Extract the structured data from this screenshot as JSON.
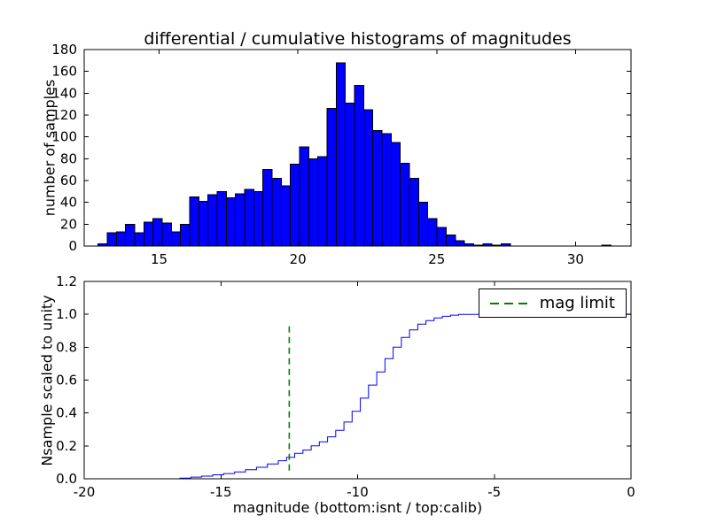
{
  "figure": {
    "background": "#ffffff",
    "frame_color": "#000000"
  },
  "chart_data": [
    {
      "type": "bar",
      "title": "differential / cumulative histograms of magnitudes",
      "ylabel": "number of samples",
      "xlim": [
        12.3,
        32.0
      ],
      "ylim": [
        0,
        180
      ],
      "xticks": [
        15,
        20,
        25,
        30
      ],
      "xtick_labels": [
        "15",
        "20",
        "25",
        "30"
      ],
      "yticks": [
        0,
        20,
        40,
        60,
        80,
        100,
        120,
        140,
        160,
        180
      ],
      "ytick_labels": [
        "0",
        "20",
        "40",
        "60",
        "80",
        "100",
        "120",
        "140",
        "160",
        "180"
      ],
      "bar_color": "#0000ff",
      "bar_edge_color": "#000000",
      "bin_start": 12.8,
      "bin_width": 0.33,
      "counts": [
        2,
        12,
        13,
        20,
        12,
        22,
        25,
        21,
        13,
        20,
        45,
        41,
        47,
        50,
        44,
        48,
        52,
        50,
        70,
        62,
        55,
        75,
        91,
        80,
        82,
        126,
        168,
        131,
        147,
        125,
        106,
        103,
        95,
        76,
        62,
        40,
        25,
        17,
        10,
        5,
        2,
        1,
        2,
        1,
        2,
        0,
        0,
        0,
        0,
        0,
        0,
        0,
        0,
        0,
        0,
        1
      ]
    },
    {
      "type": "line",
      "step": true,
      "ylabel": "Nsample scaled to unity",
      "xlabel": "magnitude (bottom:isnt / top:calib)",
      "xlim": [
        -20,
        0
      ],
      "ylim": [
        0,
        1.2
      ],
      "xticks": [
        -20,
        -15,
        -10,
        -5,
        0
      ],
      "xtick_labels": [
        "-20",
        "-15",
        "-10",
        "-5",
        "0"
      ],
      "yticks": [
        0,
        0.2,
        0.4,
        0.6,
        0.8,
        1.0,
        1.2
      ],
      "ytick_labels": [
        "0.0",
        "0.2",
        "0.4",
        "0.6",
        "0.8",
        "1.0",
        "1.2"
      ],
      "line_color": "#0000ff",
      "x": [
        -20,
        -16.5,
        -16.1,
        -15.7,
        -15.3,
        -14.9,
        -14.5,
        -14.1,
        -13.7,
        -13.3,
        -12.9,
        -12.6,
        -12.3,
        -12.0,
        -11.7,
        -11.4,
        -11.1,
        -10.8,
        -10.5,
        -10.2,
        -9.9,
        -9.6,
        -9.3,
        -9.0,
        -8.7,
        -8.4,
        -8.1,
        -7.8,
        -7.5,
        -7.2,
        -6.9,
        -6.6,
        -6.3,
        0
      ],
      "y": [
        0,
        0.004,
        0.01,
        0.016,
        0.024,
        0.032,
        0.042,
        0.055,
        0.07,
        0.09,
        0.11,
        0.13,
        0.155,
        0.175,
        0.2,
        0.225,
        0.255,
        0.295,
        0.345,
        0.41,
        0.49,
        0.57,
        0.65,
        0.73,
        0.8,
        0.86,
        0.905,
        0.94,
        0.962,
        0.978,
        0.988,
        0.995,
        1.0,
        1.0
      ],
      "mag_limit_line": {
        "x": -12.5,
        "y_from": 0.05,
        "y_to": 0.95,
        "color": "#008000",
        "style": "dashed"
      },
      "legend": {
        "position": "upper right",
        "entries": [
          {
            "label": "mag limit",
            "color": "#008000",
            "style": "dashed"
          }
        ]
      }
    }
  ]
}
